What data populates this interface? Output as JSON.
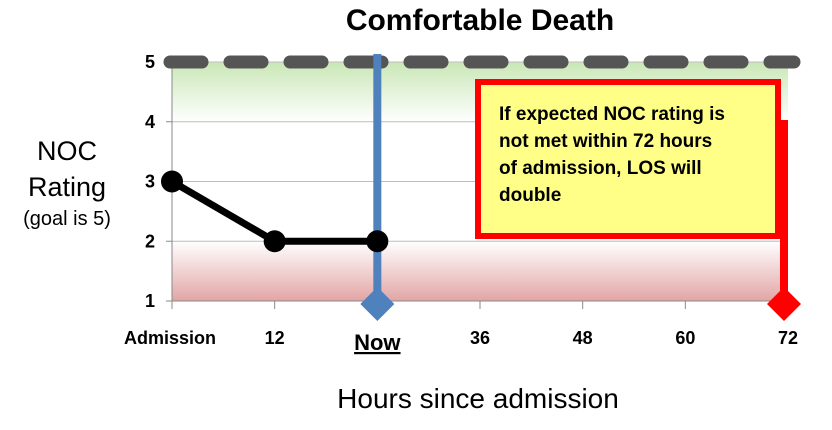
{
  "chart_data": {
    "type": "line",
    "title": "Comfortable Death",
    "ylabel_line1": "NOC",
    "ylabel_line2": "Rating",
    "ylabel_line3": "(goal is 5)",
    "xlabel": "Hours since admission",
    "x_ticks": [
      "Admission",
      "12",
      "Now",
      "36",
      "48",
      "60",
      "72"
    ],
    "y_ticks": [
      "1",
      "2",
      "3",
      "4",
      "5"
    ],
    "ylim": [
      1,
      5
    ],
    "xlim": [
      0,
      72
    ],
    "grid": true,
    "series": [
      {
        "x": [
          0,
          12,
          24
        ],
        "values": [
          3,
          2,
          2
        ],
        "color": "#000000"
      }
    ],
    "goal": {
      "value": 5,
      "color": "#555555"
    },
    "now_marker": {
      "x": 24,
      "label": "Now",
      "color": "#4f81bd"
    },
    "deadline_marker": {
      "x": 72,
      "color": "#ff0000"
    },
    "annotation": {
      "lines": [
        "If expected NOC rating is",
        "not met within 72 hours",
        "of admission, LOS will",
        "double"
      ],
      "fill": "#ffff88",
      "border": "#ff0000"
    },
    "background_gradient": {
      "top": "#c9e7b6",
      "bottom": "#e3a5a5"
    }
  }
}
